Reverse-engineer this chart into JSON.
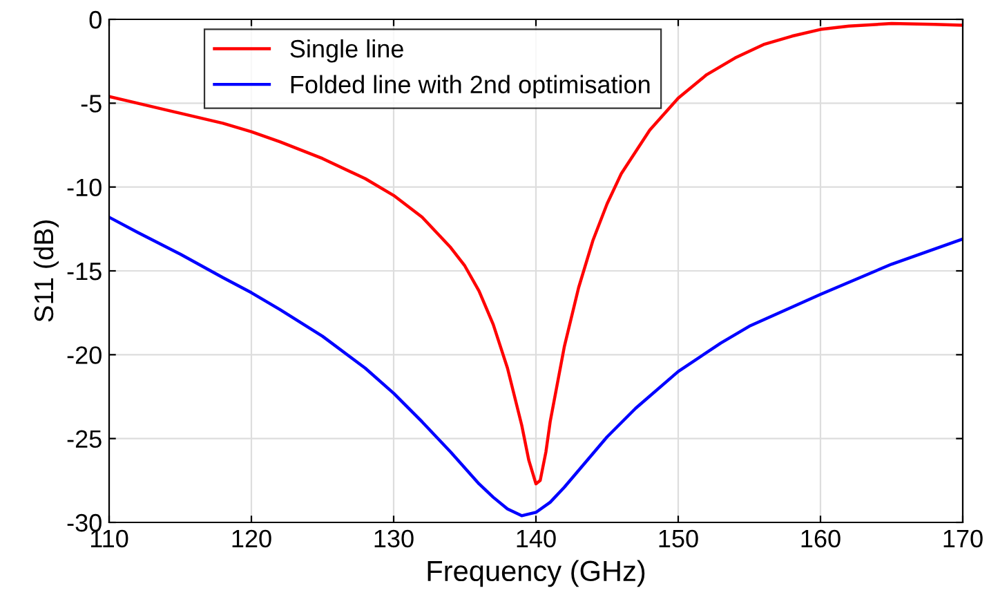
{
  "chart_data": {
    "type": "line",
    "xlabel": "Frequency (GHz)",
    "ylabel": "S11 (dB)",
    "xlim": [
      110,
      170
    ],
    "xticks": [
      110,
      120,
      130,
      140,
      150,
      160,
      170
    ],
    "ylim": [
      -30,
      0
    ],
    "yticks": [
      -30,
      -25,
      -20,
      -15,
      -10,
      -5,
      0
    ],
    "grid": true,
    "legend": "top left",
    "line_style": "solid",
    "marker": "none",
    "series": [
      {
        "name": "Single line",
        "color": "#ff0000",
        "x": [
          110,
          112,
          115,
          118,
          120,
          122,
          125,
          128,
          130,
          132,
          134,
          135,
          136,
          137,
          138,
          139,
          139.5,
          140,
          140.3,
          140.7,
          141,
          142,
          143,
          144,
          145,
          146,
          148,
          150,
          152,
          154,
          156,
          158,
          160,
          162,
          165,
          168,
          170
        ],
        "values": [
          -4.6,
          -5.0,
          -5.6,
          -6.2,
          -6.7,
          -7.3,
          -8.3,
          -9.5,
          -10.5,
          -11.8,
          -13.6,
          -14.7,
          -16.2,
          -18.2,
          -20.8,
          -24.2,
          -26.3,
          -27.7,
          -27.5,
          -25.8,
          -24.0,
          -19.5,
          -16.0,
          -13.2,
          -11.0,
          -9.2,
          -6.6,
          -4.7,
          -3.3,
          -2.3,
          -1.5,
          -1.0,
          -0.6,
          -0.4,
          -0.25,
          -0.3,
          -0.35
        ]
      },
      {
        "name": "Folded line with 2nd optimisation",
        "color": "#0000ff",
        "x": [
          110,
          112,
          115,
          118,
          120,
          122,
          125,
          128,
          130,
          132,
          134,
          136,
          137,
          138,
          139,
          140,
          141,
          142,
          143,
          145,
          147,
          150,
          153,
          155,
          160,
          165,
          170
        ],
        "values": [
          -11.8,
          -12.7,
          -14.0,
          -15.4,
          -16.3,
          -17.3,
          -18.9,
          -20.8,
          -22.3,
          -24.0,
          -25.8,
          -27.7,
          -28.5,
          -29.2,
          -29.6,
          -29.4,
          -28.8,
          -27.9,
          -26.9,
          -24.9,
          -23.2,
          -21.0,
          -19.3,
          -18.3,
          -16.4,
          -14.6,
          -13.1
        ]
      }
    ]
  }
}
